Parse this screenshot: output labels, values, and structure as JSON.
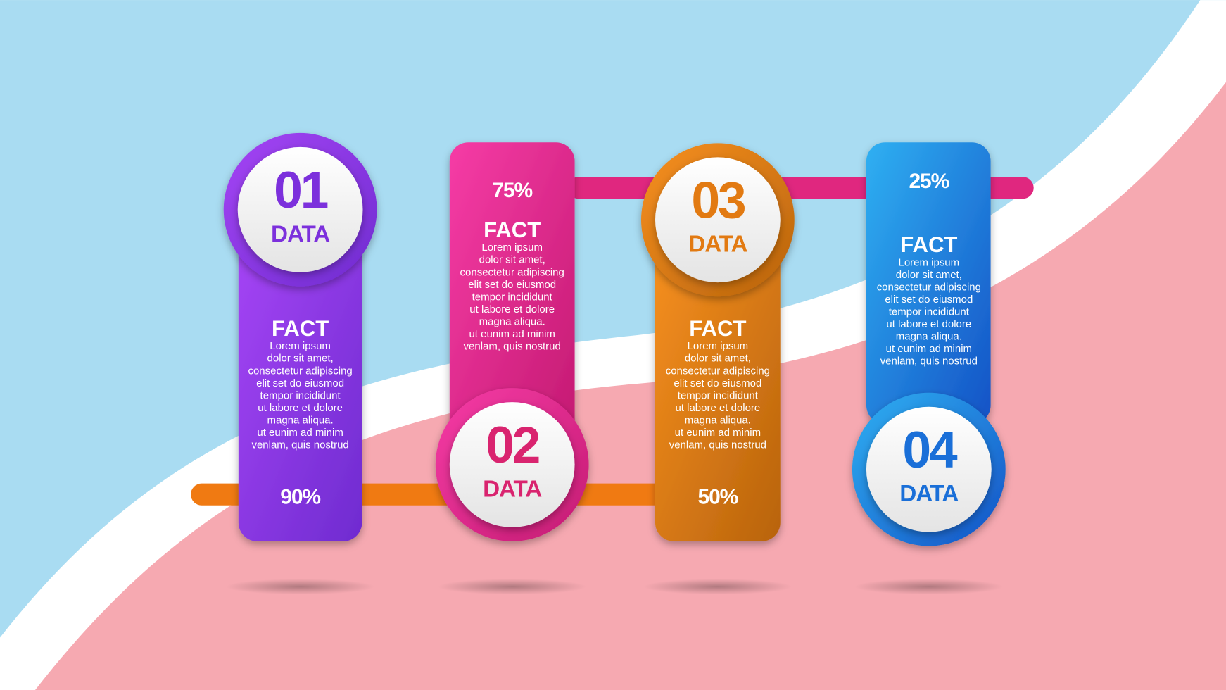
{
  "items": [
    {
      "number": "01",
      "label": "DATA",
      "heading": "FACT",
      "body": [
        "Lorem ipsum",
        "dolor sit amet,",
        "consectetur adipiscing",
        "elit set do eiusmod",
        "tempor incididunt",
        "ut labore et dolore",
        "magna aliqua.",
        "ut eunim ad minim",
        "venlam, quis nostrud"
      ],
      "percent": "90%"
    },
    {
      "number": "02",
      "label": "DATA",
      "heading": "FACT",
      "body": [
        "Lorem ipsum",
        "dolor sit amet,",
        "consectetur adipiscing",
        "elit set do eiusmod",
        "tempor incididunt",
        "ut labore et dolore",
        "magna aliqua.",
        "ut eunim ad minim",
        "venlam, quis nostrud"
      ],
      "percent": "75%"
    },
    {
      "number": "03",
      "label": "DATA",
      "heading": "FACT",
      "body": [
        "Lorem ipsum",
        "dolor sit amet,",
        "consectetur adipiscing",
        "elit set do eiusmod",
        "tempor incididunt",
        "ut labore et dolore",
        "magna aliqua.",
        "ut eunim ad minim",
        "venlam, quis nostrud"
      ],
      "percent": "50%"
    },
    {
      "number": "04",
      "label": "DATA",
      "heading": "FACT",
      "body": [
        "Lorem ipsum",
        "dolor sit amet,",
        "consectetur adipiscing",
        "elit set do eiusmod",
        "tempor incididunt",
        "ut labore et dolore",
        "magna aliqua.",
        "ut eunim ad minim",
        "venlam, quis nostrud"
      ],
      "percent": "25%"
    }
  ]
}
